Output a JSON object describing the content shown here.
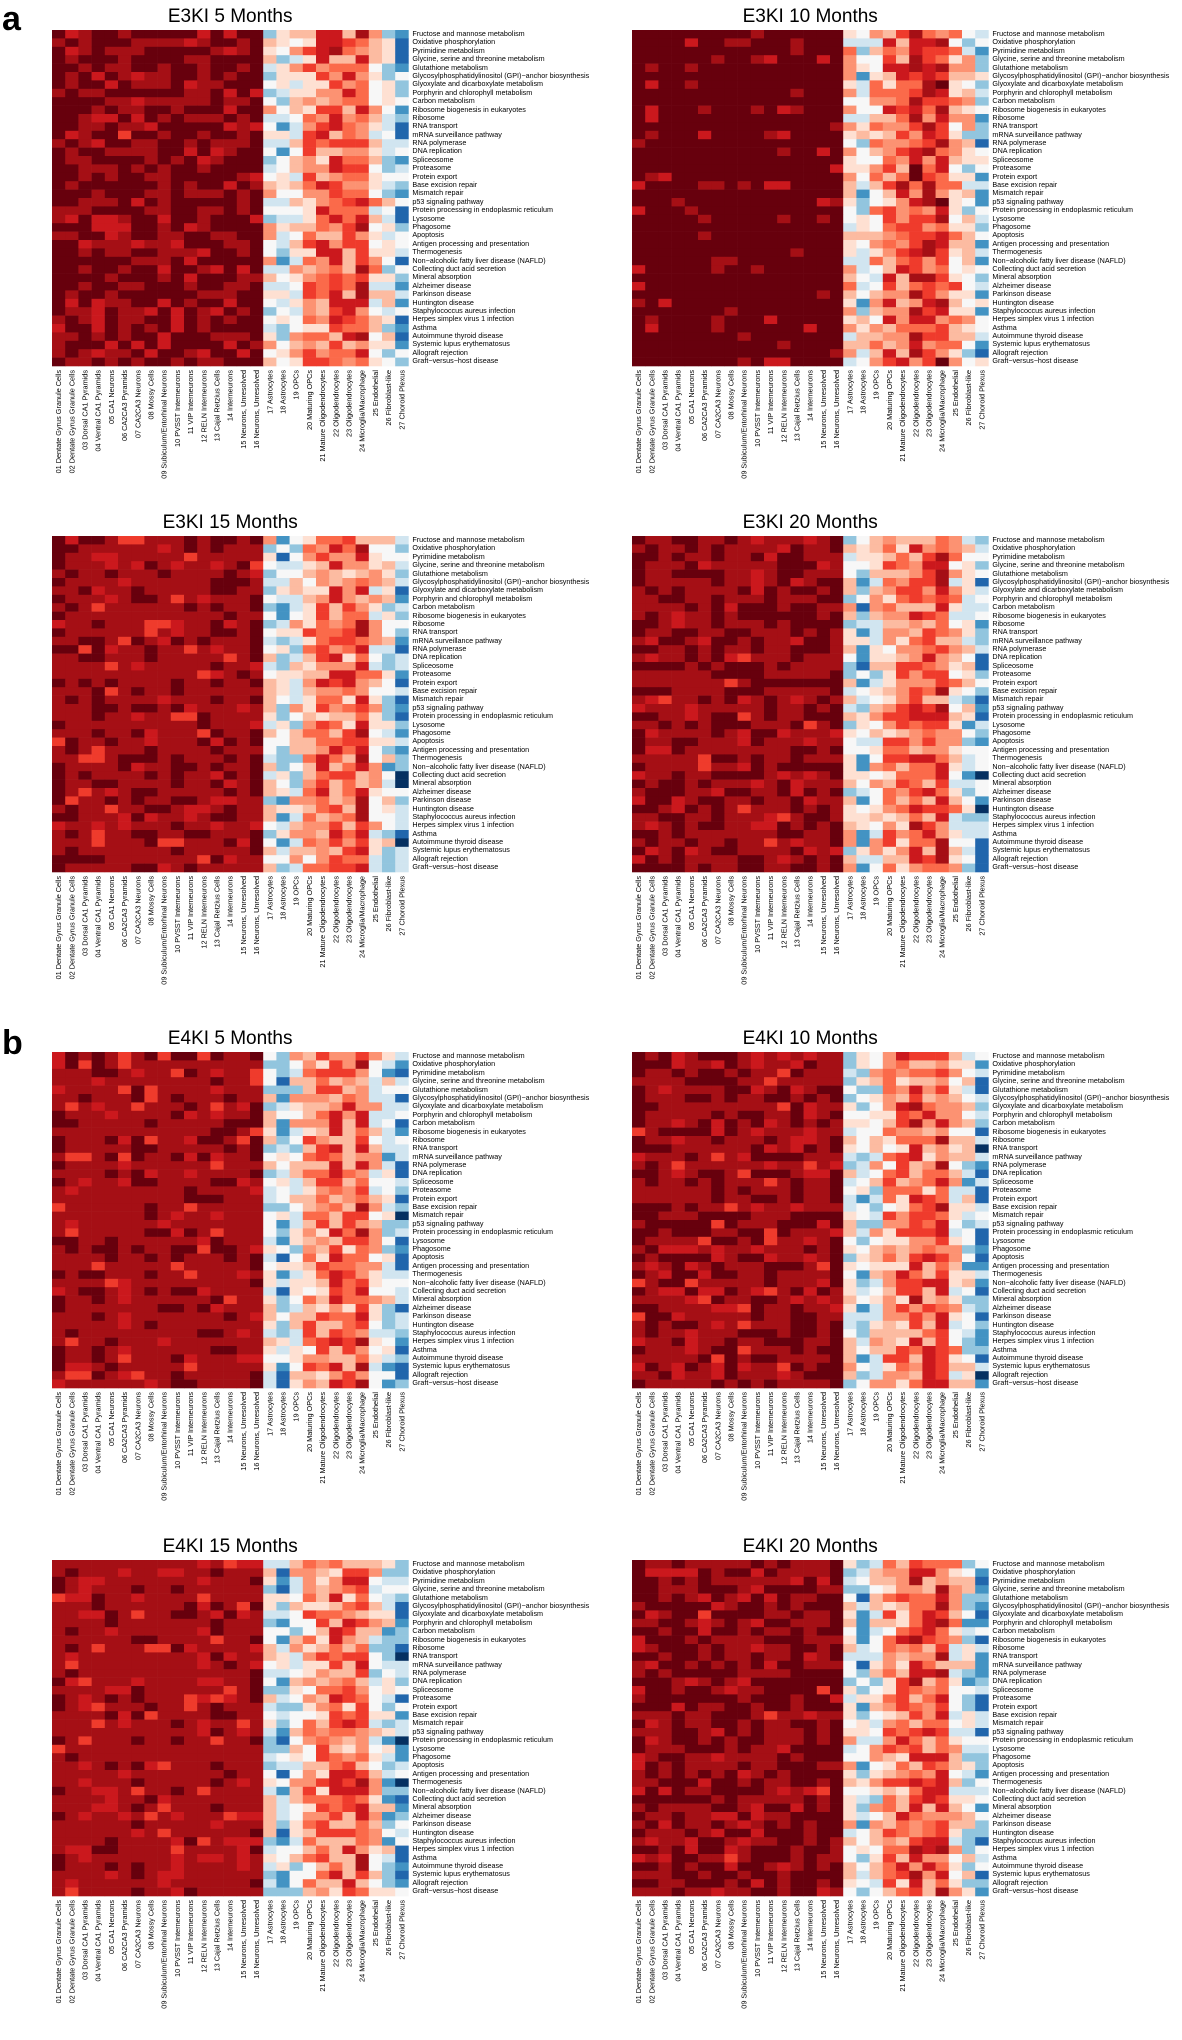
{
  "figure": {
    "panels": [
      {
        "letter": "a",
        "heatmap_indices": [
          0,
          1,
          2,
          3
        ]
      },
      {
        "letter": "b",
        "heatmap_indices": [
          4,
          5,
          6,
          7
        ]
      }
    ]
  },
  "palette": [
    "#67000d",
    "#a50f15",
    "#cb181d",
    "#ef3b2c",
    "#fb6a4a",
    "#fc9272",
    "#fcbba1",
    "#fee0d2",
    "#f7f7f7",
    "#d1e5f0",
    "#92c5de",
    "#4393c3",
    "#2166ac",
    "#053061"
  ],
  "chart_data": [
    {
      "type": "heatmap",
      "title": "E3KI 5 Months",
      "genotype": "E3KI",
      "age": "5 Months",
      "seed": 11,
      "shift": 0.0
    },
    {
      "type": "heatmap",
      "title": "E3KI 10 Months",
      "genotype": "E3KI",
      "age": "10 Months",
      "seed": 23,
      "shift": -0.6
    },
    {
      "type": "heatmap",
      "title": "E3KI 15 Months",
      "genotype": "E3KI",
      "age": "15 Months",
      "seed": 37,
      "shift": 0.4
    },
    {
      "type": "heatmap",
      "title": "E3KI 20 Months",
      "genotype": "E3KI",
      "age": "20 Months",
      "seed": 41,
      "shift": 0.2
    },
    {
      "type": "heatmap",
      "title": "E4KI 5 Months",
      "genotype": "E4KI",
      "age": "5 Months",
      "seed": 53,
      "shift": 0.5
    },
    {
      "type": "heatmap",
      "title": "E4KI 10 Months",
      "genotype": "E4KI",
      "age": "10 Months",
      "seed": 67,
      "shift": 0.3
    },
    {
      "type": "heatmap",
      "title": "E4KI 15 Months",
      "genotype": "E4KI",
      "age": "15 Months",
      "seed": 71,
      "shift": 0.6
    },
    {
      "type": "heatmap",
      "title": "E4KI 20 Months",
      "genotype": "E4KI",
      "age": "20 Months",
      "seed": 83,
      "shift": 0.1
    }
  ],
  "cell_types": [
    "01 Dentate Gyrus Granule Cells",
    "02 Dentate Gyrus Granule Cells",
    "03 Dorsal CA1 Pyramids",
    "04 Ventral CA1 Pyramids",
    "05 CA1 Neurons",
    "06 CA2CA3 Pyramids",
    "07 CA2CA3 Neurons",
    "08 Mossy Cells",
    "09 Subiculum/Entorhinal Neurons",
    "10 PVSST Interneurons",
    "11 VIP Interneurons",
    "12 RELN Interneurons",
    "13 Cajal Retzius Cells",
    "14 Interneurons",
    "15 Neurons, Unresolved",
    "16 Neurons, Unresolved",
    "17 Astrocytes",
    "18 Astrocytes",
    "19 OPCs",
    "20 Maturing OPCs",
    "21 Mature Oligodendrocytes",
    "22 Oligodendrocytes",
    "23 Oligodendrocytes",
    "24 Microglia/Macrophage",
    "25 Endothelial",
    "26 Fibroblast-like",
    "27 Choroid Plexus"
  ],
  "pathways": [
    "Fructose and mannose metabolism",
    "Oxidative phosphorylation",
    "Pyrimidine metabolism",
    "Glycine, serine and threonine metabolism",
    "Glutathione metabolism",
    "Glycosylphosphatidylinositol (GPI)−anchor biosynthesis",
    "Glyoxylate and dicarboxylate metabolism",
    "Porphyrin and chlorophyll metabolism",
    "Carbon metabolism",
    "Ribosome biogenesis in eukaryotes",
    "Ribosome",
    "RNA transport",
    "mRNA surveillance pathway",
    "RNA polymerase",
    "DNA replication",
    "Spliceosome",
    "Proteasome",
    "Protein export",
    "Base excision repair",
    "Mismatch repair",
    "p53 signaling pathway",
    "Protein processing in endoplasmic reticulum",
    "Lysosome",
    "Phagosome",
    "Apoptosis",
    "Antigen processing and presentation",
    "Thermogenesis",
    "Non−alcoholic fatty liver disease (NAFLD)",
    "Collecting duct acid secretion",
    "Mineral absorption",
    "Alzheimer disease",
    "Parkinson disease",
    "Huntington disease",
    "Staphylococcus aureus infection",
    "Herpes simplex virus 1 infection",
    "Asthma",
    "Autoimmune thyroid disease",
    "Systemic lupus erythematosus",
    "Allograft rejection",
    "Graft−versus−host disease"
  ]
}
